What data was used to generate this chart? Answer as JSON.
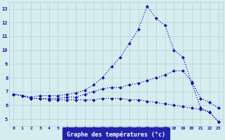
{
  "hours": [
    0,
    1,
    2,
    3,
    4,
    5,
    6,
    7,
    8,
    9,
    10,
    11,
    12,
    13,
    14,
    15,
    16,
    17,
    18,
    19,
    20,
    21,
    22,
    23
  ],
  "temp_max": [
    6.8,
    6.7,
    6.6,
    6.7,
    6.7,
    6.7,
    6.8,
    6.9,
    7.1,
    7.5,
    8.0,
    8.8,
    9.5,
    10.5,
    11.5,
    13.2,
    12.3,
    11.8,
    10.0,
    9.5,
    7.6,
    5.8,
    5.5,
    4.8
  ],
  "temp_avg": [
    6.8,
    6.7,
    6.5,
    6.5,
    6.5,
    6.5,
    6.6,
    6.6,
    6.8,
    7.0,
    7.2,
    7.3,
    7.3,
    7.5,
    7.6,
    7.8,
    8.0,
    8.2,
    8.5,
    8.5,
    7.7,
    6.5,
    6.2,
    5.8
  ],
  "temp_min": [
    6.8,
    6.7,
    6.5,
    6.5,
    6.4,
    6.4,
    6.4,
    6.4,
    6.4,
    6.4,
    6.5,
    6.5,
    6.5,
    6.4,
    6.4,
    6.3,
    6.2,
    6.1,
    6.0,
    5.9,
    5.8,
    5.7,
    5.5,
    4.8
  ],
  "xlabel": "Graphe des températures (°c)",
  "ylim": [
    4.5,
    13.5
  ],
  "xlim": [
    -0.5,
    23.5
  ],
  "yticks": [
    5,
    6,
    7,
    8,
    9,
    10,
    11,
    12,
    13
  ],
  "xticks": [
    0,
    1,
    2,
    3,
    4,
    5,
    6,
    7,
    8,
    9,
    10,
    11,
    12,
    13,
    14,
    15,
    16,
    17,
    18,
    19,
    20,
    21,
    22,
    23
  ],
  "line_color": "#1414aa",
  "bg_color": "#d4eef0",
  "grid_color": "#b8cece",
  "xaxis_bg": "#2222aa",
  "xaxis_label_color": "#ffffff"
}
